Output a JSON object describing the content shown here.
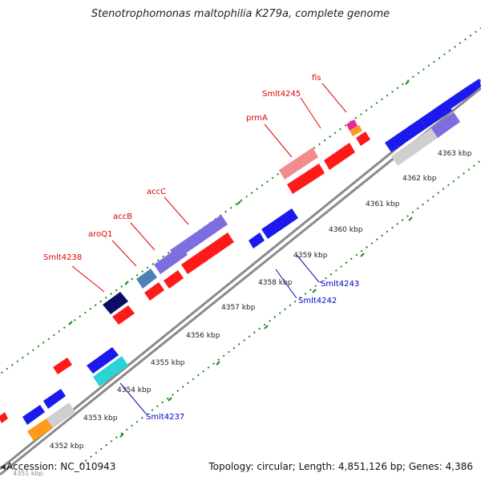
{
  "title": "Stenotrophomonas maltophilia K279a, complete genome",
  "footer": {
    "accession": "Accession: NC_010943",
    "summary": "Topology: circular; Length: 4,851,126 bp; Genes: 4,386",
    "corner_label": "4351 kbp"
  },
  "colors": {
    "red": "#ff1a1a",
    "blue": "#1a1aee",
    "purple": "#7d6ee0",
    "pink": "#f08c8c",
    "navy": "#0d0d66",
    "steelblue": "#4a82b8",
    "cyan": "#2ad4d4",
    "orange": "#ff9a1a",
    "gray": "#cfcfcf",
    "magenta": "#ee2299",
    "backbone": "#8a8a8a",
    "tick": "#1a8a1a",
    "label_red": "#e00000",
    "label_blue": "#0000cc"
  },
  "ticks": [
    {
      "label": "4352 kbp"
    },
    {
      "label": "4353 kbp"
    },
    {
      "label": "4354 kbp"
    },
    {
      "label": "4355 kbp"
    },
    {
      "label": "4356 kbp"
    },
    {
      "label": "4357 kbp"
    },
    {
      "label": "4358 kbp"
    },
    {
      "label": "4359 kbp"
    },
    {
      "label": "4360 kbp"
    },
    {
      "label": "4361 kbp"
    },
    {
      "label": "4362 kbp"
    },
    {
      "label": "4363 kbp"
    }
  ],
  "forward_labels": [
    {
      "name": "Smlt4238"
    },
    {
      "name": "aroQ1"
    },
    {
      "name": "accB"
    },
    {
      "name": "accC"
    },
    {
      "name": "prmA"
    },
    {
      "name": "Smlt4245"
    },
    {
      "name": "fis"
    }
  ],
  "reverse_labels": [
    {
      "name": "Smlt4237"
    },
    {
      "name": "Smlt4242"
    },
    {
      "name": "Smlt4243"
    }
  ]
}
